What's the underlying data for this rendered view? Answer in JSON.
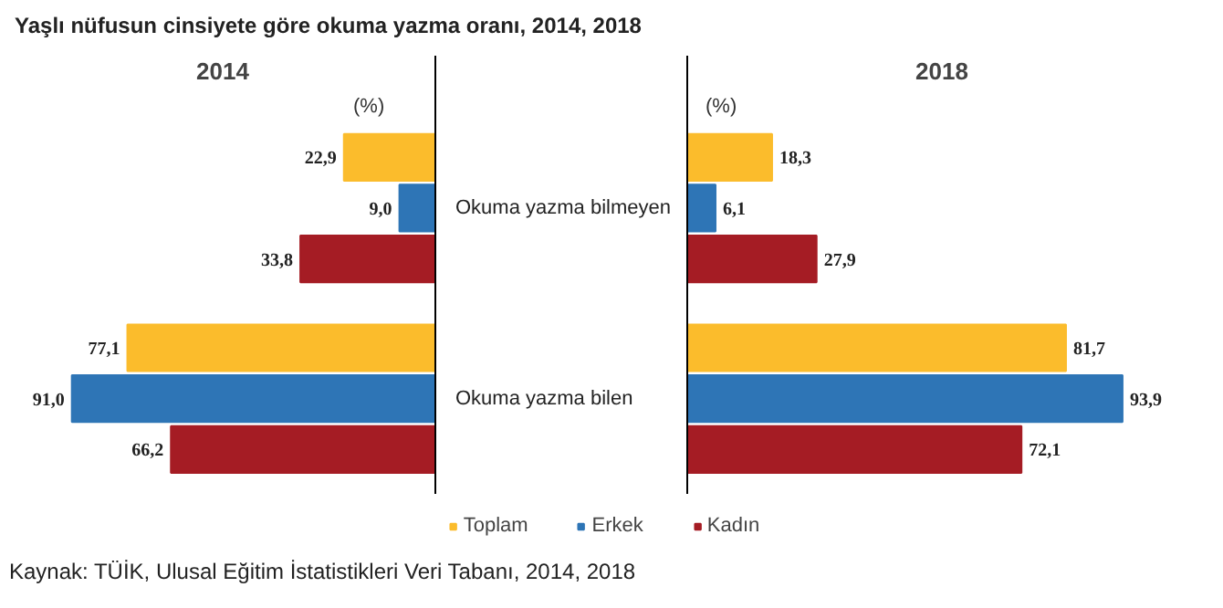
{
  "chart_data": [
    {
      "type": "bar",
      "orientation": "horizontal",
      "title": "2014",
      "xlabel": "(%)",
      "annotations": [
        "Yaşlı nüfusun cinsiyete göre okuma yazma oranı, 2014, 2018"
      ],
      "legend": "bottom",
      "categories": [
        "Okuma yazma bilmeyen",
        "Okuma yazma bilen"
      ],
      "series": [
        {
          "name": "Toplam",
          "color": "#fbbc2c",
          "values": [
            22.9,
            77.1
          ],
          "value_labels": [
            "22,9",
            "77,1"
          ]
        },
        {
          "name": "Erkek",
          "color": "#2e75b6",
          "values": [
            9.0,
            91.0
          ],
          "value_labels": [
            "9,0",
            "91,0"
          ]
        },
        {
          "name": "Kadın",
          "color": "#a51c24",
          "values": [
            33.8,
            66.2
          ],
          "value_labels": [
            "33,8",
            "66,2"
          ]
        }
      ]
    },
    {
      "type": "bar",
      "orientation": "horizontal",
      "title": "2018",
      "xlabel": "(%)",
      "annotations": [
        "Kaynak: TÜİK, Ulusal Eğitim İstatistikleri Veri Tabanı, 2014, 2018"
      ],
      "categories": [
        null,
        null
      ],
      "series": [
        {
          "color": "#fbbc2c",
          "values": [
            18.3,
            81.7
          ],
          "value_labels": [
            "18,3",
            "81,7"
          ]
        },
        {
          "color": "#2e75b6",
          "values": [
            6.1,
            93.9
          ],
          "value_labels": [
            "6,1",
            "93,9"
          ]
        },
        {
          "color": "#a51c24",
          "values": [
            27.9,
            72.1
          ],
          "value_labels": [
            "27,9",
            "72,1"
          ]
        }
      ]
    }
  ]
}
